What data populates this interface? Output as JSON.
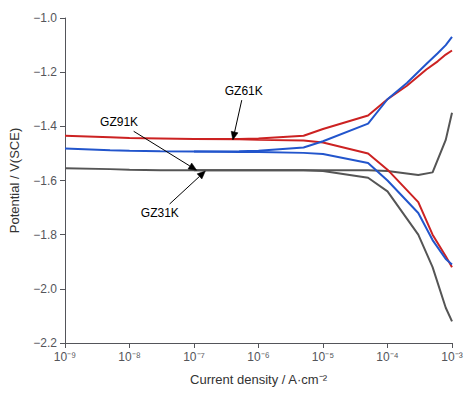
{
  "chart_data": {
    "type": "line",
    "log": "x",
    "grid": false,
    "xlabel": "Current density / A·cm⁻²",
    "ylabel": "Potential / V(SCE)",
    "xlim": [
      1e-09,
      0.001
    ],
    "xticks": [
      {
        "value": 1e-09,
        "label": "10⁻⁹"
      },
      {
        "value": 1e-08,
        "label": "10⁻⁸"
      },
      {
        "value": 1e-07,
        "label": "10⁻⁷"
      },
      {
        "value": 1e-06,
        "label": "10⁻⁶"
      },
      {
        "value": 1e-05,
        "label": "10⁻⁵"
      },
      {
        "value": 0.0001,
        "label": "10⁻⁴"
      },
      {
        "value": 0.001,
        "label": "10⁻³"
      }
    ],
    "ylim": [
      -2.2,
      -1.0
    ],
    "yticks": [
      {
        "value": -2.2,
        "label": "−2.2"
      },
      {
        "value": -2.0,
        "label": "−2.0"
      },
      {
        "value": -1.8,
        "label": "−1.8"
      },
      {
        "value": -1.6,
        "label": "−1.6"
      },
      {
        "value": -1.4,
        "label": "−1.4"
      },
      {
        "value": -1.2,
        "label": "−1.2"
      },
      {
        "value": -1.0,
        "label": "−1.0"
      }
    ],
    "series": [
      {
        "name": "GZ91K",
        "color": "#555555",
        "branches": [
          {
            "x": [
              1e-09,
              5e-09,
              1e-08,
              3e-08,
              1e-07,
              5e-07,
              1e-06,
              5e-06,
              1e-05,
              5e-05,
              0.0001,
              0.0003,
              0.0005,
              0.0008,
              0.001
            ],
            "values": [
              -1.555,
              -1.558,
              -1.56,
              -1.562,
              -1.562,
              -1.562,
              -1.562,
              -1.562,
              -1.565,
              -1.59,
              -1.64,
              -1.8,
              -1.92,
              -2.07,
              -2.12
            ]
          },
          {
            "x": [
              1e-07,
              5e-07,
              1e-06,
              5e-06,
              1e-05,
              5e-05,
              0.0001,
              0.0003,
              0.0005,
              0.0008,
              0.001
            ],
            "values": [
              -1.562,
              -1.562,
              -1.562,
              -1.562,
              -1.562,
              -1.562,
              -1.565,
              -1.58,
              -1.57,
              -1.45,
              -1.35
            ]
          }
        ]
      },
      {
        "name": "GZ61K",
        "color": "#cc2222",
        "branches": [
          {
            "x": [
              1e-09,
              5e-09,
              1e-08,
              3e-08,
              1e-07,
              5e-07,
              1e-06,
              5e-06,
              1e-05,
              5e-05,
              0.0001,
              0.0003,
              0.0005,
              0.0008,
              0.001
            ],
            "values": [
              -1.435,
              -1.44,
              -1.443,
              -1.445,
              -1.447,
              -1.448,
              -1.45,
              -1.452,
              -1.46,
              -1.5,
              -1.56,
              -1.68,
              -1.8,
              -1.88,
              -1.92
            ]
          },
          {
            "x": [
              1e-07,
              5e-07,
              1e-06,
              5e-06,
              1e-05,
              5e-05,
              0.0001,
              0.0002,
              0.0004,
              0.0006,
              0.0008,
              0.001
            ],
            "values": [
              -1.447,
              -1.447,
              -1.445,
              -1.435,
              -1.41,
              -1.36,
              -1.3,
              -1.25,
              -1.19,
              -1.16,
              -1.135,
              -1.12
            ]
          }
        ]
      },
      {
        "name": "GZ31K",
        "color": "#2255cc",
        "branches": [
          {
            "x": [
              1e-09,
              5e-09,
              1e-08,
              3e-08,
              1e-07,
              5e-07,
              1e-06,
              5e-06,
              1e-05,
              5e-05,
              0.0001,
              0.0003,
              0.0005,
              0.0008,
              0.001
            ],
            "values": [
              -1.482,
              -1.488,
              -1.49,
              -1.492,
              -1.493,
              -1.495,
              -1.495,
              -1.498,
              -1.502,
              -1.535,
              -1.6,
              -1.72,
              -1.82,
              -1.89,
              -1.91
            ]
          },
          {
            "x": [
              1e-07,
              5e-07,
              1e-06,
              5e-06,
              1e-05,
              5e-05,
              0.0001,
              0.0002,
              0.0004,
              0.0006,
              0.0008,
              0.001
            ],
            "values": [
              -1.493,
              -1.492,
              -1.49,
              -1.478,
              -1.455,
              -1.39,
              -1.3,
              -1.24,
              -1.17,
              -1.13,
              -1.1,
              -1.07
            ]
          }
        ]
      }
    ],
    "annotations": [
      {
        "text": "GZ91K",
        "xy": [
          1.1e-07,
          -1.562
        ],
        "xytext": [
          3.5e-09,
          -1.385
        ]
      },
      {
        "text": "GZ61K",
        "xy": [
          4e-07,
          -1.45
        ],
        "xytext": [
          3e-07,
          -1.27
        ]
      },
      {
        "text": "GZ31K",
        "xy": [
          1.5e-07,
          -1.565
        ],
        "xytext": [
          1.5e-08,
          -1.72
        ]
      }
    ]
  }
}
